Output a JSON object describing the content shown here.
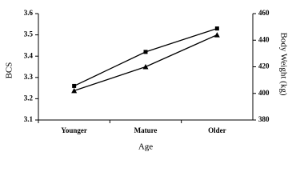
{
  "chart_data": {
    "type": "line",
    "x_label": "Age",
    "y_label": "BCS",
    "y2_label": "Body Weight (kg)",
    "categories": [
      "Younger",
      "Mature",
      "Older"
    ],
    "series": [
      {
        "color": "#000000",
        "marker": "square",
        "values": [
          3.26,
          3.42,
          3.53
        ]
      },
      {
        "color": "#000000",
        "marker": "triangle",
        "axis": "y2",
        "values": [
          402,
          420,
          444
        ]
      }
    ],
    "ylim": [
      3.1,
      3.6
    ],
    "yticks": [
      3.1,
      3.2,
      3.3,
      3.4,
      3.5,
      3.6
    ],
    "y2lim": [
      380,
      460
    ],
    "y2ticks": [
      380,
      400,
      420,
      440,
      460
    ]
  }
}
